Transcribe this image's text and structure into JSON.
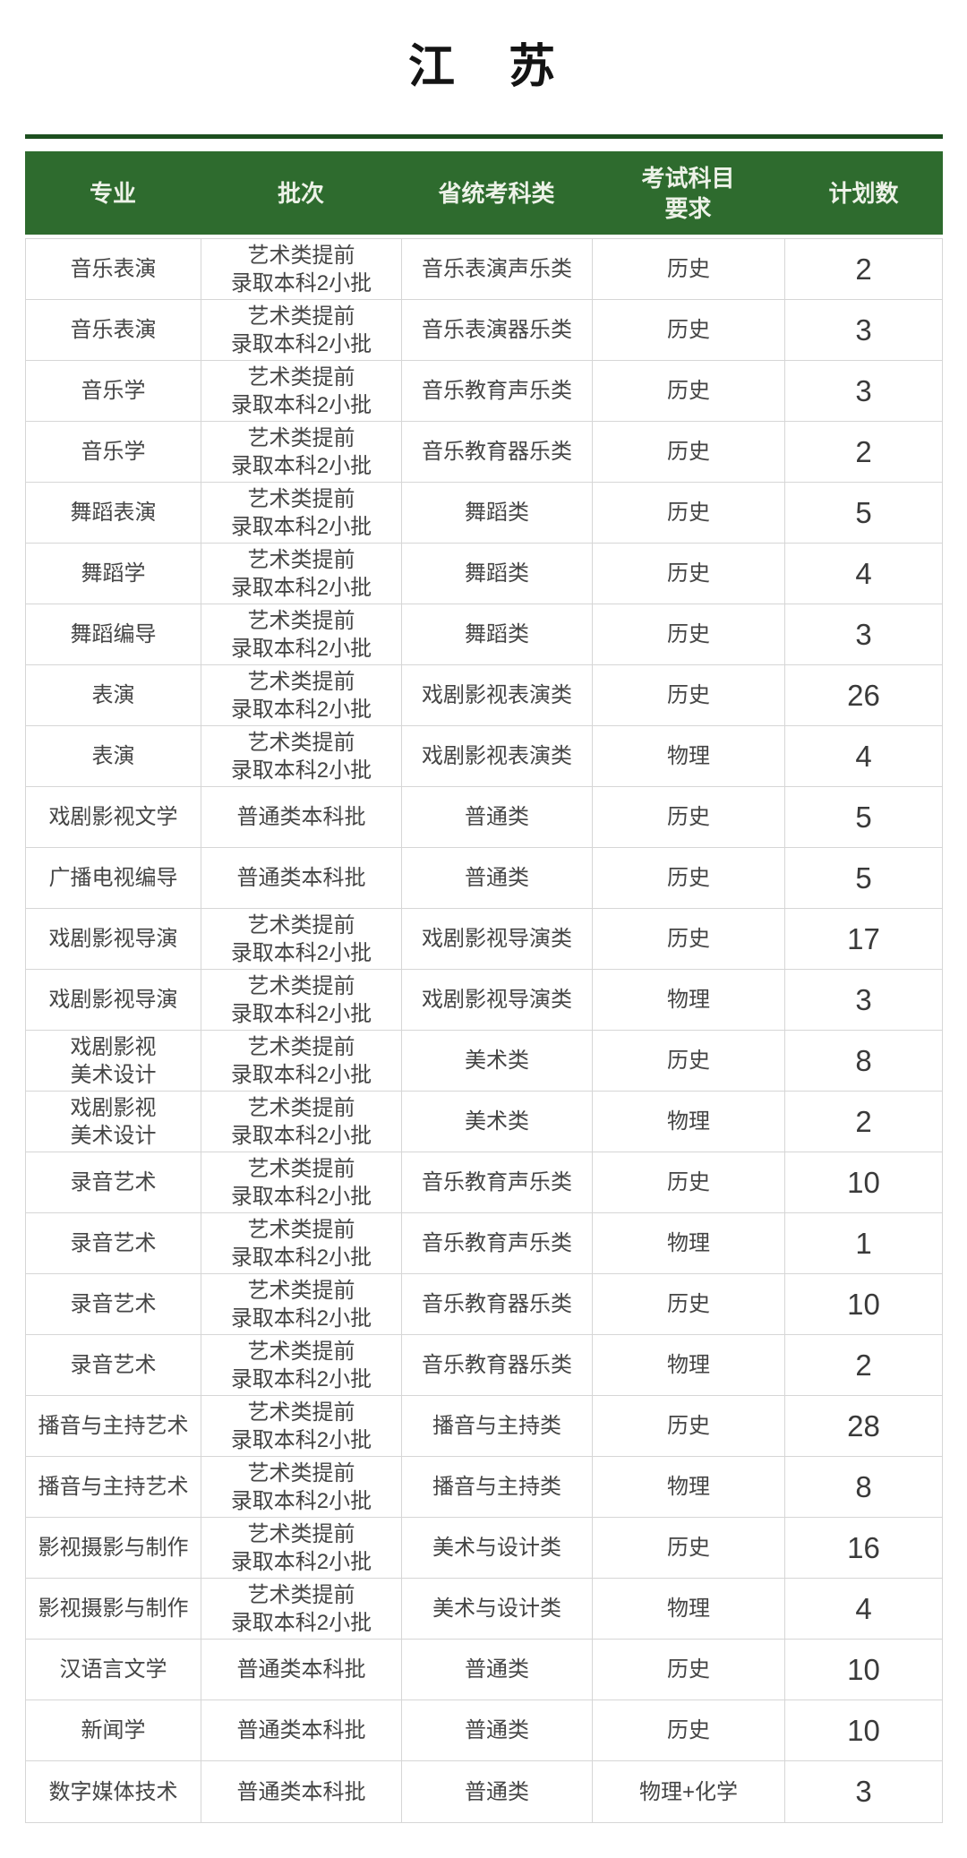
{
  "page": {
    "title": "江　苏"
  },
  "table": {
    "headers": [
      "专业",
      "批次",
      "省统考科类",
      "考试科目\n要求",
      "计划数"
    ],
    "rows": [
      {
        "major": "音乐表演",
        "batch": "艺术类提前\n录取本科2小批",
        "category": "音乐表演声乐类",
        "subjects": "历史",
        "count": "2"
      },
      {
        "major": "音乐表演",
        "batch": "艺术类提前\n录取本科2小批",
        "category": "音乐表演器乐类",
        "subjects": "历史",
        "count": "3"
      },
      {
        "major": "音乐学",
        "batch": "艺术类提前\n录取本科2小批",
        "category": "音乐教育声乐类",
        "subjects": "历史",
        "count": "3"
      },
      {
        "major": "音乐学",
        "batch": "艺术类提前\n录取本科2小批",
        "category": "音乐教育器乐类",
        "subjects": "历史",
        "count": "2"
      },
      {
        "major": "舞蹈表演",
        "batch": "艺术类提前\n录取本科2小批",
        "category": "舞蹈类",
        "subjects": "历史",
        "count": "5"
      },
      {
        "major": "舞蹈学",
        "batch": "艺术类提前\n录取本科2小批",
        "category": "舞蹈类",
        "subjects": "历史",
        "count": "4"
      },
      {
        "major": "舞蹈编导",
        "batch": "艺术类提前\n录取本科2小批",
        "category": "舞蹈类",
        "subjects": "历史",
        "count": "3"
      },
      {
        "major": "表演",
        "batch": "艺术类提前\n录取本科2小批",
        "category": "戏剧影视表演类",
        "subjects": "历史",
        "count": "26"
      },
      {
        "major": "表演",
        "batch": "艺术类提前\n录取本科2小批",
        "category": "戏剧影视表演类",
        "subjects": "物理",
        "count": "4"
      },
      {
        "major": "戏剧影视文学",
        "batch": "普通类本科批",
        "category": "普通类",
        "subjects": "历史",
        "count": "5"
      },
      {
        "major": "广播电视编导",
        "batch": "普通类本科批",
        "category": "普通类",
        "subjects": "历史",
        "count": "5"
      },
      {
        "major": "戏剧影视导演",
        "batch": "艺术类提前\n录取本科2小批",
        "category": "戏剧影视导演类",
        "subjects": "历史",
        "count": "17"
      },
      {
        "major": "戏剧影视导演",
        "batch": "艺术类提前\n录取本科2小批",
        "category": "戏剧影视导演类",
        "subjects": "物理",
        "count": "3"
      },
      {
        "major": "戏剧影视\n美术设计",
        "batch": "艺术类提前\n录取本科2小批",
        "category": "美术类",
        "subjects": "历史",
        "count": "8"
      },
      {
        "major": "戏剧影视\n美术设计",
        "batch": "艺术类提前\n录取本科2小批",
        "category": "美术类",
        "subjects": "物理",
        "count": "2"
      },
      {
        "major": "录音艺术",
        "batch": "艺术类提前\n录取本科2小批",
        "category": "音乐教育声乐类",
        "subjects": "历史",
        "count": "10"
      },
      {
        "major": "录音艺术",
        "batch": "艺术类提前\n录取本科2小批",
        "category": "音乐教育声乐类",
        "subjects": "物理",
        "count": "1"
      },
      {
        "major": "录音艺术",
        "batch": "艺术类提前\n录取本科2小批",
        "category": "音乐教育器乐类",
        "subjects": "历史",
        "count": "10"
      },
      {
        "major": "录音艺术",
        "batch": "艺术类提前\n录取本科2小批",
        "category": "音乐教育器乐类",
        "subjects": "物理",
        "count": "2"
      },
      {
        "major": "播音与主持艺术",
        "batch": "艺术类提前\n录取本科2小批",
        "category": "播音与主持类",
        "subjects": "历史",
        "count": "28"
      },
      {
        "major": "播音与主持艺术",
        "batch": "艺术类提前\n录取本科2小批",
        "category": "播音与主持类",
        "subjects": "物理",
        "count": "8"
      },
      {
        "major": "影视摄影与制作",
        "batch": "艺术类提前\n录取本科2小批",
        "category": "美术与设计类",
        "subjects": "历史",
        "count": "16"
      },
      {
        "major": "影视摄影与制作",
        "batch": "艺术类提前\n录取本科2小批",
        "category": "美术与设计类",
        "subjects": "物理",
        "count": "4"
      },
      {
        "major": "汉语言文学",
        "batch": "普通类本科批",
        "category": "普通类",
        "subjects": "历史",
        "count": "10"
      },
      {
        "major": "新闻学",
        "batch": "普通类本科批",
        "category": "普通类",
        "subjects": "历史",
        "count": "10"
      },
      {
        "major": "数字媒体技术",
        "batch": "普通类本科批",
        "category": "普通类",
        "subjects": "物理+化学",
        "count": "3"
      }
    ]
  },
  "colors": {
    "header_bg": "#2E6B2E",
    "header_text": "#EDF2E8",
    "divider": "#1D4F1F",
    "border": "#D6D6D6",
    "body_text": "#454545",
    "title_text": "#141414"
  }
}
